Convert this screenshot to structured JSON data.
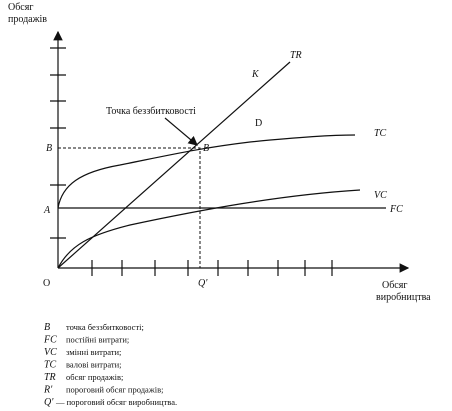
{
  "axes": {
    "y_label": [
      "Обсяг",
      "продажів"
    ],
    "x_label": [
      "Обсяг",
      "виробництва"
    ],
    "origin": "O"
  },
  "points": {
    "a": "A",
    "b_axis": "B",
    "b": "B",
    "q": "Q'"
  },
  "curves": {
    "tr": "TR",
    "k": "K",
    "d": "D",
    "tc": "TC",
    "vc": "VC",
    "fc": "FC"
  },
  "callout": "Точка беззбитковості",
  "legend": [
    {
      "symbol": "B",
      "text": "точка беззбитковості;"
    },
    {
      "symbol": "FC",
      "text": "постійні витрати;"
    },
    {
      "symbol": "VC",
      "text": "змінні витрати;"
    },
    {
      "symbol": "TC",
      "text": "валові витрати;"
    },
    {
      "symbol": "TR",
      "text": "обсяг продажів;"
    },
    {
      "symbol": "R'",
      "text": "пороговий обсяг продажів;"
    },
    {
      "symbol": "Q'",
      "text": "— пороговий обсяг виробництва."
    }
  ]
}
